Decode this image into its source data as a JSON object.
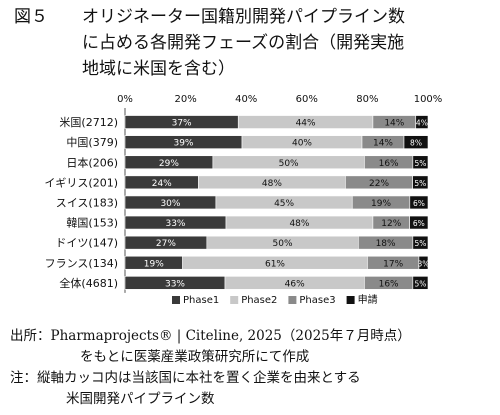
{
  "title": {
    "fig_label": "図５",
    "line1": "オリジネーター国籍別開発パイプライン数",
    "line2": "に占める各開発フェーズの割合（開発実施",
    "line3": "地域に米国を含む）"
  },
  "notes": {
    "source_label": "出所：",
    "source_text": "Pharmaprojects® | Citeline, 2025（2025年７月時点）",
    "source_text2": "をもとに医薬産業政策研究所にて作成",
    "note_label": "注：",
    "note_text": "縦軸カッコ内は当該国に本社を置く企業を由来とする",
    "note_text2": "米国開発パイプライン数"
  },
  "chart_data": {
    "type": "bar",
    "orientation": "horizontal",
    "stacked": true,
    "categories": [
      "米国(2712)",
      "中国(379)",
      "日本(206)",
      "イギリス(201)",
      "スイス(183)",
      "韓国(153)",
      "ドイツ(147)",
      "フランス(134)",
      "全体(4681)"
    ],
    "series": [
      {
        "name": "Phase1",
        "values": [
          37,
          39,
          29,
          24,
          30,
          33,
          27,
          19,
          33
        ],
        "color": "#3a3a3a"
      },
      {
        "name": "Phase2",
        "values": [
          44,
          40,
          50,
          48,
          45,
          48,
          50,
          61,
          46
        ],
        "color": "#c8c8c8"
      },
      {
        "name": "Phase3",
        "values": [
          14,
          14,
          16,
          22,
          19,
          12,
          18,
          17,
          16
        ],
        "color": "#8a8a8a"
      },
      {
        "name": "申請",
        "values": [
          4,
          8,
          5,
          5,
          6,
          6,
          5,
          3,
          5
        ],
        "color": "#111111"
      }
    ],
    "xlim": [
      0,
      100
    ],
    "xticks": [
      "0%",
      "20%",
      "40%",
      "60%",
      "80%",
      "100%"
    ],
    "legend_position": "bottom",
    "grid": false
  }
}
